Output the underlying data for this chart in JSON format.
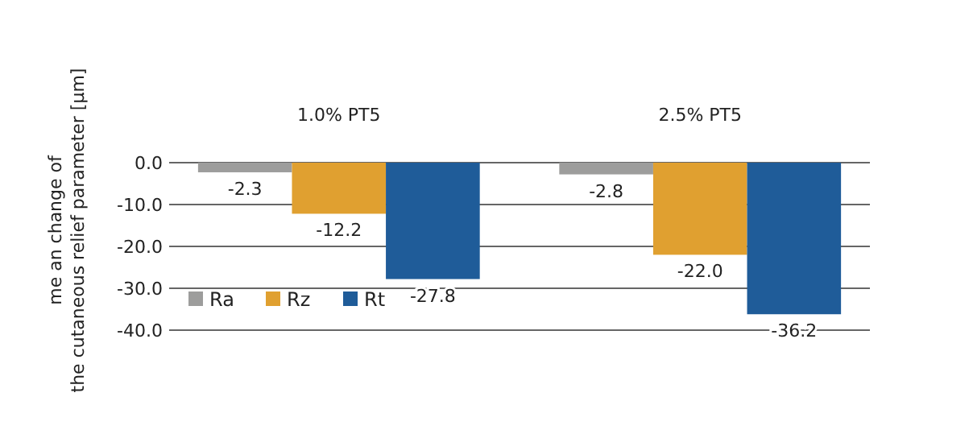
{
  "chart_data": {
    "type": "bar",
    "ylabel": "me an change of the cutaneous relief parameter [µm]",
    "categories": [
      "1.0% PT5",
      "2.5% PT5"
    ],
    "series": [
      {
        "name": "Ra",
        "color": "#9d9d9c",
        "values": [
          -2.3,
          -2.8
        ],
        "value_labels": [
          "-2.3",
          "-2.8"
        ]
      },
      {
        "name": "Rz",
        "color": "#e0a030",
        "values": [
          -12.2,
          -22.0
        ],
        "value_labels": [
          "-12.2",
          "-22.0"
        ]
      },
      {
        "name": "Rt",
        "color": "#1f5c99",
        "values": [
          -27.8,
          -36.2
        ],
        "value_labels": [
          "-27.8",
          "-36.2"
        ]
      }
    ],
    "ylim": [
      -40,
      0
    ],
    "yticks": [
      {
        "value": -40,
        "label": "-40.0"
      },
      {
        "value": -30,
        "label": "-30.0"
      },
      {
        "value": -20,
        "label": "-20.0"
      },
      {
        "value": -10,
        "label": "-10.0"
      },
      {
        "value": 0,
        "label": "0.0"
      }
    ],
    "grid": "y",
    "legend": "bottom left"
  }
}
